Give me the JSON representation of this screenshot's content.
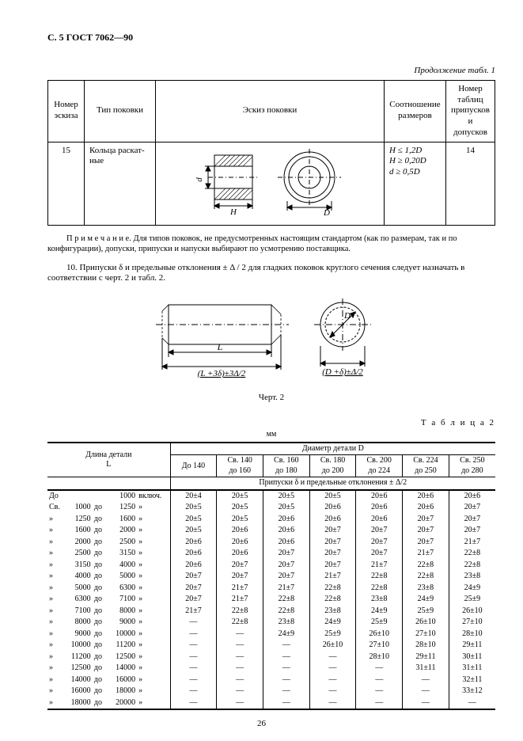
{
  "page_header": "С. 5 ГОСТ 7062—90",
  "cont_label": "Продолжение табл. 1",
  "t1": {
    "headers": [
      "Номер\nэскиза",
      "Тип поковки",
      "Эскиз поковки",
      "Соотношение\nразмеров",
      "Номер\nтаблиц\nприпусков\nи допусков"
    ],
    "row": {
      "num": "15",
      "type": "Кольца раскат-\nные",
      "ratio": [
        "H ≤ 1,2D",
        "H ≥ 0,20D",
        "d ≥ 0,5D"
      ],
      "tab": "14"
    }
  },
  "note": "П р и м е ч а н и е. Для типов поковок, не предусмотренных настоящим стандартом (как по размерам, так и по конфигурации), допуски, припуски и напуски выбирают по усмотрению поставщика.",
  "para10": "10. Припуски δ и предельные отклонения ± Δ / 2 для гладких поковок круглого сечения следует назначать в соответствии с черт. 2 и табл. 2.",
  "fig2_caption": "Черт. 2",
  "t2_label": "Т а б л и ц а  2",
  "mm": "мм",
  "t2_meta": {
    "len_header": "Длина детали\nL",
    "diam_header": "Диаметр детали D",
    "diam_ranges": [
      "До 140",
      "Св. 140\nдо 160",
      "Св. 160\nдо 180",
      "Св. 180\nдо 200",
      "Св. 200\nдо 224",
      "Св. 224\nдо 250",
      "Св. 250\nдо 280"
    ],
    "sublabel": "Припуски δ и предельные отклонения  ± Δ/2"
  },
  "t2_len_rows": [
    {
      "p": "До",
      "a": "",
      "b": "1000",
      "s": "включ."
    },
    {
      "p": "Св.",
      "a": "1000",
      "b": "1250",
      "s": "»"
    },
    {
      "p": "»",
      "a": "1250",
      "b": "1600",
      "s": "»"
    },
    {
      "p": "»",
      "a": "1600",
      "b": "2000",
      "s": "»"
    },
    {
      "p": "»",
      "a": "2000",
      "b": "2500",
      "s": "»"
    },
    {
      "p": "»",
      "a": "2500",
      "b": "3150",
      "s": "»"
    },
    {
      "p": "»",
      "a": "3150",
      "b": "4000",
      "s": "»"
    },
    {
      "p": "»",
      "a": "4000",
      "b": "5000",
      "s": "»"
    },
    {
      "p": "»",
      "a": "5000",
      "b": "6300",
      "s": "»"
    },
    {
      "p": "»",
      "a": "6300",
      "b": "7100",
      "s": "»"
    },
    {
      "p": "»",
      "a": "7100",
      "b": "8000",
      "s": "»"
    },
    {
      "p": "»",
      "a": "8000",
      "b": "9000",
      "s": "»"
    },
    {
      "p": "»",
      "a": "9000",
      "b": "10000",
      "s": "»"
    },
    {
      "p": "»",
      "a": "10000",
      "b": "11200",
      "s": "»"
    },
    {
      "p": "»",
      "a": "11200",
      "b": "12500",
      "s": "»"
    },
    {
      "p": "»",
      "a": "12500",
      "b": "14000",
      "s": "»"
    },
    {
      "p": "»",
      "a": "14000",
      "b": "16000",
      "s": "»"
    },
    {
      "p": "»",
      "a": "16000",
      "b": "18000",
      "s": "»"
    },
    {
      "p": "»",
      "a": "18000",
      "b": "20000",
      "s": "»"
    }
  ],
  "t2_data": [
    [
      "20±4",
      "20±5",
      "20±5",
      "20±5",
      "20±6",
      "20±6",
      "20±6"
    ],
    [
      "20±5",
      "20±5",
      "20±5",
      "20±6",
      "20±6",
      "20±6",
      "20±7"
    ],
    [
      "20±5",
      "20±5",
      "20±6",
      "20±6",
      "20±6",
      "20±7",
      "20±7"
    ],
    [
      "20±5",
      "20±6",
      "20±6",
      "20±7",
      "20±7",
      "20±7",
      "20±7"
    ],
    [
      "20±6",
      "20±6",
      "20±6",
      "20±7",
      "20±7",
      "20±7",
      "21±7"
    ],
    [
      "20±6",
      "20±6",
      "20±7",
      "20±7",
      "20±7",
      "21±7",
      "22±8"
    ],
    [
      "20±6",
      "20±7",
      "20±7",
      "20±7",
      "21±7",
      "22±8",
      "22±8"
    ],
    [
      "20±7",
      "20±7",
      "20±7",
      "21±7",
      "22±8",
      "22±8",
      "23±8"
    ],
    [
      "20±7",
      "21±7",
      "21±7",
      "22±8",
      "22±8",
      "23±8",
      "24±9"
    ],
    [
      "20±7",
      "21±7",
      "22±8",
      "22±8",
      "23±8",
      "24±9",
      "25±9"
    ],
    [
      "21±7",
      "22±8",
      "22±8",
      "23±8",
      "24±9",
      "25±9",
      "26±10"
    ],
    [
      "—",
      "22±8",
      "23±8",
      "24±9",
      "25±9",
      "26±10",
      "27±10"
    ],
    [
      "—",
      "—",
      "24±9",
      "25±9",
      "26±10",
      "27±10",
      "28±10"
    ],
    [
      "—",
      "—",
      "—",
      "26±10",
      "27±10",
      "28±10",
      "29±11"
    ],
    [
      "—",
      "—",
      "—",
      "—",
      "28±10",
      "29±11",
      "30±11"
    ],
    [
      "—",
      "—",
      "—",
      "—",
      "—",
      "31±11",
      "31±11"
    ],
    [
      "—",
      "—",
      "—",
      "—",
      "—",
      "—",
      "32±11"
    ],
    [
      "—",
      "—",
      "—",
      "—",
      "—",
      "—",
      "33±12"
    ],
    [
      "—",
      "—",
      "—",
      "—",
      "—",
      "—",
      "—"
    ]
  ],
  "svg_t1": {
    "label_d": "d",
    "label_H": "H",
    "label_D": "D",
    "stroke": "#000000",
    "hatch": "#000000",
    "fill": "#ffffff"
  },
  "svg_fig2": {
    "label_L": "L",
    "label_dim1": "(L +3δ)±3Δ/2",
    "label_dim2": "(D +δ)±Δ/2",
    "label_D": "D",
    "stroke": "#000000"
  },
  "page_num": "26",
  "col_widths_t2": {
    "prefix": 18,
    "a": 36,
    "sep": 14,
    "b": 40,
    "suffix": 40,
    "data": 56
  }
}
